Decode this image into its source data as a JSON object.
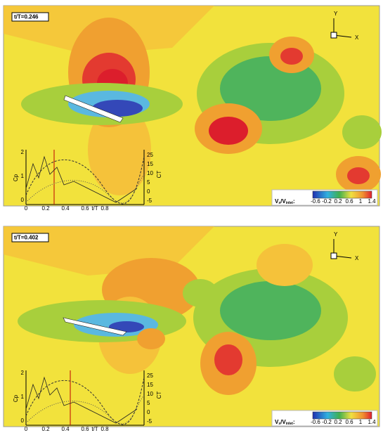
{
  "panels": [
    {
      "time_label": "t/T=0.246",
      "axis_y": "Y",
      "axis_x": "X",
      "inset": {
        "left_label": "Cp",
        "right_label": "CT",
        "x_label": "t/T",
        "x_ticks": [
          "0",
          "0.2",
          "0.4",
          "0.6",
          "0.8"
        ],
        "left_ticks": [
          "2",
          "1",
          "0"
        ],
        "right_ticks": [
          "25",
          "15",
          "10",
          "5",
          "0",
          "-5"
        ]
      },
      "colorbar": {
        "v": "V",
        "x": "x",
        "slash": "/V",
        "inlet": "inlet",
        "colon": ":",
        "ticks": [
          "-0.6",
          "-0.2",
          "0.2",
          "0.6",
          "1",
          "1.4"
        ]
      }
    },
    {
      "time_label": "t/T=0.402",
      "axis_y": "Y",
      "axis_x": "X",
      "inset": {
        "left_label": "Cp",
        "right_label": "CT",
        "x_label": "t/T",
        "x_ticks": [
          "0",
          "0.2",
          "0.4",
          "0.6",
          "0.8"
        ],
        "left_ticks": [
          "2",
          "1",
          "0"
        ],
        "right_ticks": [
          "25",
          "15",
          "10",
          "5",
          "0",
          "-5"
        ]
      },
      "colorbar": {
        "v": "V",
        "x": "x",
        "slash": "/V",
        "inlet": "inlet",
        "colon": ":",
        "ticks": [
          "-0.6",
          "-0.2",
          "0.2",
          "0.6",
          "1",
          "1.4"
        ]
      }
    }
  ]
}
